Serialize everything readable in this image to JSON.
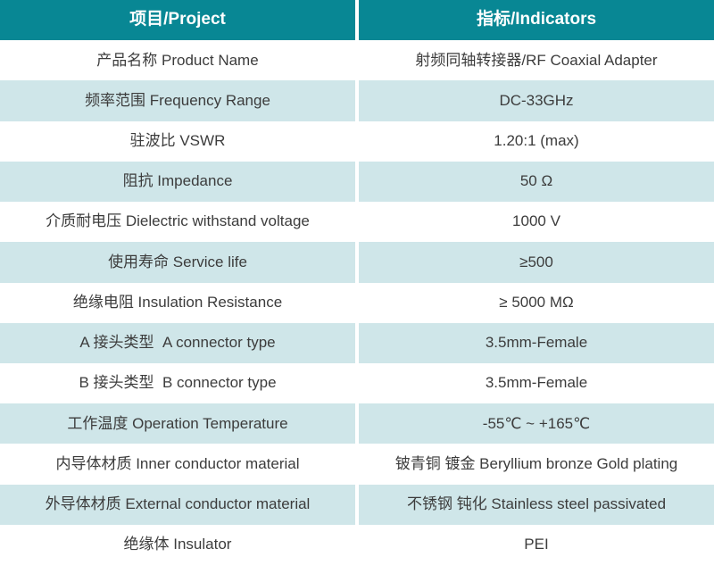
{
  "theme": {
    "header_bg": "#088794",
    "header_text": "#ffffff",
    "row_bg": "#ffffff",
    "row_alt_bg": "#cfe6e9",
    "text_color": "#3c3c3c",
    "divider_color": "#ffffff"
  },
  "table": {
    "headers": {
      "project": "项目/Project",
      "indicators": "指标/Indicators"
    },
    "rows": [
      {
        "project": "产品名称 Product Name",
        "indicator": "射频同轴转接器/RF Coaxial Adapter"
      },
      {
        "project": "频率范围 Frequency Range",
        "indicator": "DC-33GHz"
      },
      {
        "project": "驻波比 VSWR",
        "indicator": "1.20:1 (max)"
      },
      {
        "project": "阻抗 Impedance",
        "indicator": "50 Ω"
      },
      {
        "project": "介质耐电压 Dielectric withstand voltage",
        "indicator": "1000 V"
      },
      {
        "project": "使用寿命 Service life",
        "indicator": "≥500"
      },
      {
        "project": "绝缘电阻 Insulation Resistance",
        "indicator": "≥ 5000 MΩ"
      },
      {
        "project": "A 接头类型  A connector type",
        "indicator": "3.5mm-Female"
      },
      {
        "project": "B 接头类型  B connector type",
        "indicator": "3.5mm-Female"
      },
      {
        "project": "工作温度 Operation Temperature",
        "indicator": "-55℃ ~ +165℃"
      },
      {
        "project": "内导体材质 Inner conductor material",
        "indicator": "铍青铜 镀金 Beryllium bronze Gold plating"
      },
      {
        "project": "外导体材质 External conductor material",
        "indicator": "不锈钢 钝化 Stainless steel passivated"
      },
      {
        "project": "绝缘体 Insulator",
        "indicator": "PEI"
      }
    ]
  }
}
